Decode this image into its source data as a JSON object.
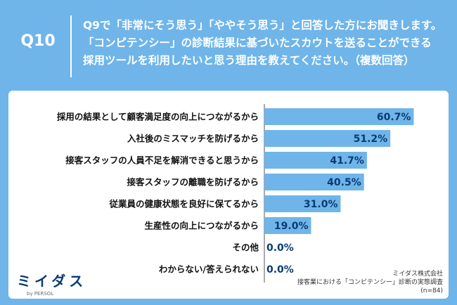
{
  "question": {
    "number": "Q10",
    "lines": [
      "Q9で「非常にそう思う」「ややそう思う」と回答した方にお聞きします。",
      "「コンピテンシー」の診断結果に基づいたスカウトを送ることができる",
      "採用ツールを利用したいと思う理由を教えてください。（複数回答）"
    ]
  },
  "chart_data": {
    "type": "bar",
    "orientation": "horizontal",
    "categories": [
      "採用の結果として顧客満足度の向上につながるから",
      "入社後のミスマッチを防げるから",
      "接客スタッフの人員不足を解消できると思うから",
      "接客スタッフの離職を防げるから",
      "従業員の健康状態を良好に保てるから",
      "生産性の向上につながるから",
      "その他",
      "わからない/答えられない"
    ],
    "values": [
      60.7,
      51.2,
      41.7,
      40.5,
      31.0,
      19.0,
      0.0,
      0.0
    ],
    "labels": [
      "60.7%",
      "51.2%",
      "41.7%",
      "40.5%",
      "31.0%",
      "19.0%",
      "0.0%",
      "0.0%"
    ],
    "unit": "%",
    "xlim": [
      0,
      100
    ],
    "bar_color": "#6fb5e9",
    "grid": false
  },
  "logo": {
    "main": "ミイダス",
    "sub": "by PERSOL"
  },
  "footer": {
    "company": "ミイダス株式会社",
    "survey": "接客業における「コンピテンシー」診断の実態調査",
    "n": "(n=84)"
  },
  "colors": {
    "background": "#6fb5e9",
    "bar": "#6fb5e9",
    "label_text": "#111111",
    "value_text": "#0b3b73"
  }
}
